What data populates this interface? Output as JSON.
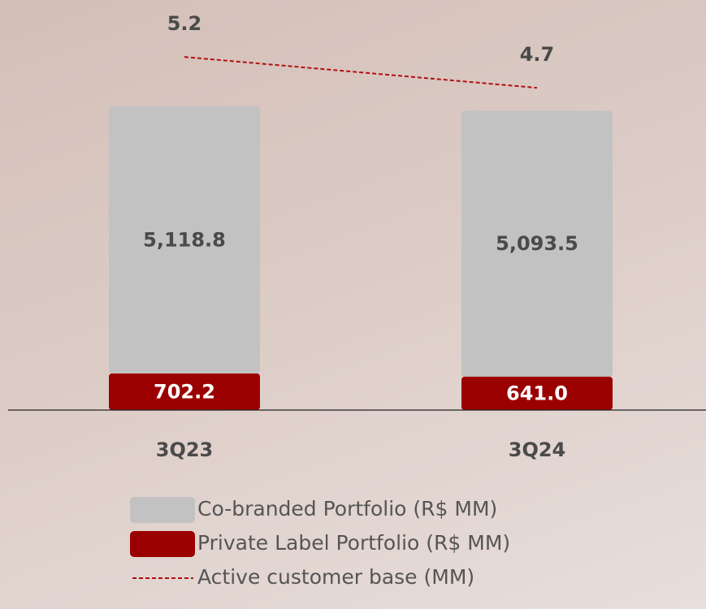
{
  "chart_data": {
    "type": "bar",
    "categories": [
      "3Q23",
      "3Q24"
    ],
    "series": [
      {
        "name": "Private Label Portfolio (R$ MM)",
        "color": "#9b0000",
        "values": [
          702.2,
          641.0
        ],
        "value_labels": [
          "702.2",
          "641.0"
        ]
      },
      {
        "name": "Co-branded Portfolio (R$ MM)",
        "color": "#c2c2c2",
        "values": [
          5118.8,
          5093.5
        ],
        "value_labels": [
          "5,118.8",
          "5,093.5"
        ]
      },
      {
        "name": "Active customer base (MM)",
        "type": "line",
        "axis": "y2",
        "color": "#b01010",
        "values": [
          5.2,
          4.7
        ]
      }
    ],
    "stacked": true,
    "ylim": [
      0,
      7500
    ],
    "y2lim": [
      -0.52,
      5.82
    ]
  }
}
